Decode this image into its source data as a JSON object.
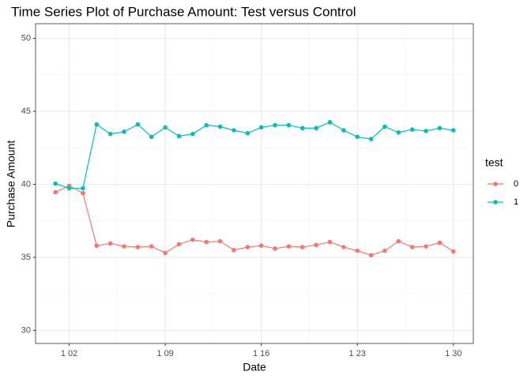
{
  "chart_data": {
    "type": "line",
    "title": "Time Series Plot of Purchase Amount: Test versus Control",
    "x_label": "Date",
    "y_label": "Purchase Amount",
    "x": [
      1,
      2,
      3,
      4,
      5,
      6,
      7,
      8,
      9,
      10,
      11,
      12,
      13,
      14,
      15,
      16,
      17,
      18,
      19,
      20,
      21,
      22,
      23,
      24,
      25,
      26,
      27,
      28,
      29,
      30
    ],
    "xlim": [
      -0.45,
      31.45
    ],
    "xticks": [
      {
        "value": 2,
        "label": "1 02"
      },
      {
        "value": 9,
        "label": "1 09"
      },
      {
        "value": 16,
        "label": "1 16"
      },
      {
        "value": 23,
        "label": "1 23"
      },
      {
        "value": 30,
        "label": "1 30"
      }
    ],
    "xminorticks": [
      5.5,
      12.5,
      19.5,
      26.5
    ],
    "ylim": [
      29.1,
      51.0
    ],
    "yticks": [
      30,
      35,
      40,
      45,
      50
    ],
    "yminorticks": [
      32.5,
      37.5,
      42.5,
      47.5
    ],
    "grid": true,
    "legend_title": "test",
    "legend_position": "right",
    "series": [
      {
        "name": "0",
        "color": "#f8766d",
        "values": [
          39.46,
          39.9,
          39.4,
          35.8,
          35.95,
          35.75,
          35.7,
          35.75,
          35.3,
          35.9,
          36.2,
          36.05,
          36.1,
          35.5,
          35.7,
          35.8,
          35.6,
          35.75,
          35.7,
          35.85,
          36.05,
          35.7,
          35.45,
          35.15,
          35.45,
          36.1,
          35.7,
          35.75,
          36.0,
          35.4
        ]
      },
      {
        "name": "1",
        "color": "#00bfc4",
        "values": [
          40.05,
          39.73,
          39.73,
          44.1,
          43.45,
          43.6,
          44.1,
          43.25,
          43.9,
          43.3,
          43.45,
          44.05,
          43.95,
          43.7,
          43.5,
          43.9,
          44.05,
          44.05,
          43.85,
          43.85,
          44.25,
          43.7,
          43.25,
          43.1,
          43.95,
          43.55,
          43.75,
          43.65,
          43.85,
          43.7
        ]
      }
    ]
  }
}
